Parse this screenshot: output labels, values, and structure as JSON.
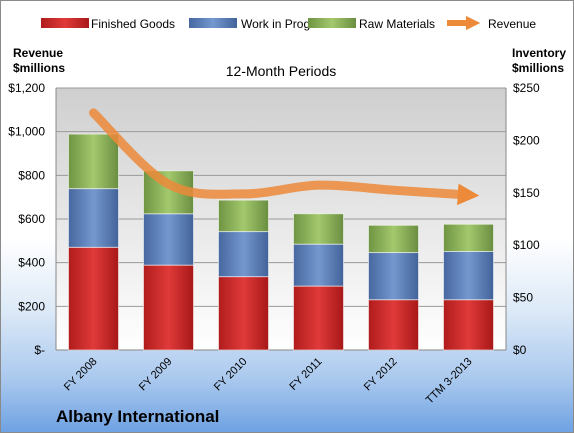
{
  "company": "Albany International",
  "chart_data": {
    "type": "bar",
    "subtype": "stacked bar with line overlay",
    "title": "12-Month Periods",
    "categories": [
      "FY 2008",
      "FY 2009",
      "FY 2010",
      "FY 2011",
      "FY 2012",
      "TTM 3-2013"
    ],
    "left_axis": {
      "label_line1": "Revenue",
      "label_line2": "$millions",
      "ylim": [
        0,
        1200
      ],
      "ticks": [
        "$-",
        "$200",
        "$400",
        "$600",
        "$800",
        "$1,000",
        "$1,200"
      ]
    },
    "right_axis": {
      "label_line1": "Inventory",
      "label_line2": "$millions",
      "ylim": [
        0,
        250
      ],
      "ticks": [
        "$0",
        "$50",
        "$100",
        "$150",
        "$200",
        "$250"
      ]
    },
    "grid": true,
    "legend_position": "top",
    "series": [
      {
        "name": "Finished Goods",
        "axis": "right",
        "color": "#d42b2b",
        "values": [
          98,
          81,
          70,
          61,
          48,
          48
        ]
      },
      {
        "name": "Work in Progress",
        "axis": "right",
        "color": "#5b83c1",
        "values": [
          56,
          49,
          43,
          40,
          45,
          46
        ]
      },
      {
        "name": "Raw Materials",
        "axis": "right",
        "color": "#8db45c",
        "values": [
          52,
          41,
          30,
          29,
          26,
          26
        ]
      }
    ],
    "line_series": {
      "name": "Revenue",
      "axis": "left",
      "color": "#ec8a3a",
      "values": [
        1086,
        760,
        715,
        755,
        732,
        710
      ]
    }
  }
}
